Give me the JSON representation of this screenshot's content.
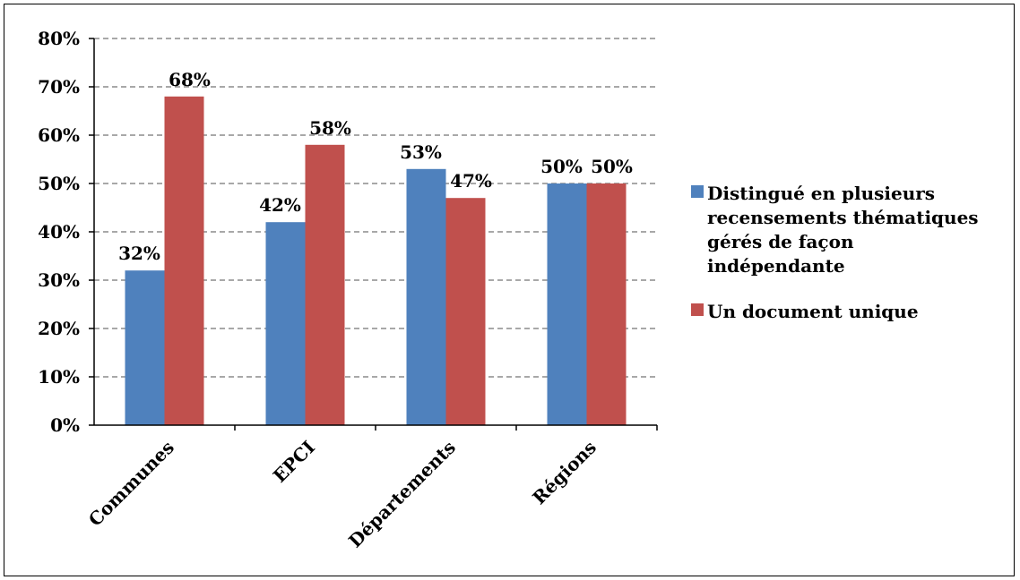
{
  "chart_data": {
    "type": "bar",
    "categories": [
      "Communes",
      "EPCI",
      "Départements",
      "Régions"
    ],
    "series": [
      {
        "name": "Distingué en plusieurs recensements thématiques gérés de façon indépendante",
        "name_lines": [
          "Distingué en plusieurs",
          "recensements thématiques",
          "gérés de façon",
          "indépendante"
        ],
        "values": [
          32,
          42,
          53,
          50
        ],
        "labels": [
          "32%",
          "42%",
          "53%",
          "50%"
        ],
        "color": "#4F81BD"
      },
      {
        "name": "Un document unique",
        "name_lines": [
          "Un document unique"
        ],
        "values": [
          68,
          58,
          47,
          50
        ],
        "labels": [
          "68%",
          "58%",
          "47%",
          "50%"
        ],
        "color": "#C0504D"
      }
    ],
    "y_ticks": [
      "0%",
      "10%",
      "20%",
      "30%",
      "40%",
      "50%",
      "60%",
      "70%",
      "80%"
    ],
    "ylim": [
      0,
      80
    ],
    "y_tick_step": 10,
    "grid": true,
    "legend_position": "right"
  }
}
